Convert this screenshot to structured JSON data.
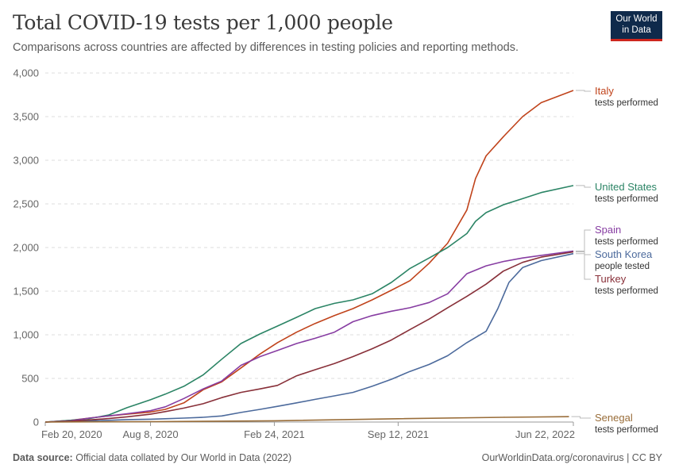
{
  "header": {
    "title": "Total COVID-19 tests per 1,000 people",
    "subtitle": "Comparisons across countries are affected by differences in testing policies and reporting methods."
  },
  "logo": {
    "line1": "Our World",
    "line2": "in Data",
    "bg_color": "#0f2a4b",
    "accent_color": "#ce261e"
  },
  "footer": {
    "source_label": "Data source:",
    "source_text": "Official data collated by Our World in Data (2022)",
    "right_text": "OurWorldinData.org/coronavirus | CC BY"
  },
  "chart_data": {
    "type": "line",
    "title": "Total COVID-19 tests per 1,000 people",
    "ylim": [
      0,
      4000
    ],
    "yticks": [
      0,
      500,
      1000,
      1500,
      2000,
      2500,
      3000,
      3500,
      4000
    ],
    "ytick_labels": [
      "0",
      "500",
      "1,000",
      "1,500",
      "2,000",
      "2,500",
      "3,000",
      "3,500",
      "4,000"
    ],
    "xticks": [
      "2020-02-20",
      "2020-08-08",
      "2021-02-24",
      "2021-09-12",
      "2022-06-22"
    ],
    "xtick_labels": [
      "Feb 20, 2020",
      "Aug 8, 2020",
      "Feb 24, 2021",
      "Sep 12, 2021",
      "Jun 22, 2022"
    ],
    "xlim": [
      "2020-02-20",
      "2022-06-22"
    ],
    "grid": true,
    "series": [
      {
        "name": "Italy",
        "sublabel": "tests performed",
        "color": "#c0431b",
        "points": [
          [
            "2020-02-20",
            0
          ],
          [
            "2020-04-01",
            20
          ],
          [
            "2020-05-01",
            45
          ],
          [
            "2020-06-01",
            70
          ],
          [
            "2020-07-01",
            90
          ],
          [
            "2020-08-08",
            115
          ],
          [
            "2020-09-01",
            145
          ],
          [
            "2020-10-01",
            220
          ],
          [
            "2020-11-01",
            370
          ],
          [
            "2020-12-01",
            460
          ],
          [
            "2021-01-01",
            620
          ],
          [
            "2021-02-01",
            780
          ],
          [
            "2021-03-01",
            910
          ],
          [
            "2021-04-01",
            1030
          ],
          [
            "2021-05-01",
            1130
          ],
          [
            "2021-06-01",
            1220
          ],
          [
            "2021-07-01",
            1300
          ],
          [
            "2021-08-01",
            1400
          ],
          [
            "2021-09-01",
            1510
          ],
          [
            "2021-10-01",
            1620
          ],
          [
            "2021-11-01",
            1820
          ],
          [
            "2021-12-01",
            2050
          ],
          [
            "2022-01-01",
            2430
          ],
          [
            "2022-01-15",
            2790
          ],
          [
            "2022-02-01",
            3050
          ],
          [
            "2022-03-01",
            3270
          ],
          [
            "2022-04-01",
            3500
          ],
          [
            "2022-05-01",
            3660
          ],
          [
            "2022-06-22",
            3800
          ]
        ]
      },
      {
        "name": "United States",
        "sublabel": "tests performed",
        "color": "#2b8465",
        "points": [
          [
            "2020-02-20",
            0
          ],
          [
            "2020-04-01",
            20
          ],
          [
            "2020-05-01",
            40
          ],
          [
            "2020-06-01",
            80
          ],
          [
            "2020-07-01",
            165
          ],
          [
            "2020-08-08",
            255
          ],
          [
            "2020-09-01",
            320
          ],
          [
            "2020-10-01",
            410
          ],
          [
            "2020-11-01",
            540
          ],
          [
            "2020-12-01",
            720
          ],
          [
            "2021-01-01",
            900
          ],
          [
            "2021-02-01",
            1010
          ],
          [
            "2021-03-01",
            1100
          ],
          [
            "2021-04-01",
            1200
          ],
          [
            "2021-05-01",
            1300
          ],
          [
            "2021-06-01",
            1360
          ],
          [
            "2021-07-01",
            1400
          ],
          [
            "2021-08-01",
            1470
          ],
          [
            "2021-09-01",
            1600
          ],
          [
            "2021-10-01",
            1760
          ],
          [
            "2021-11-01",
            1880
          ],
          [
            "2021-12-01",
            2000
          ],
          [
            "2022-01-01",
            2160
          ],
          [
            "2022-01-15",
            2300
          ],
          [
            "2022-02-01",
            2400
          ],
          [
            "2022-03-01",
            2490
          ],
          [
            "2022-04-01",
            2560
          ],
          [
            "2022-05-01",
            2630
          ],
          [
            "2022-06-22",
            2710
          ]
        ]
      },
      {
        "name": "Spain",
        "sublabel": "tests performed",
        "color": "#873da2",
        "points": [
          [
            "2020-02-20",
            0
          ],
          [
            "2020-04-01",
            15
          ],
          [
            "2020-05-01",
            45
          ],
          [
            "2020-06-01",
            70
          ],
          [
            "2020-07-01",
            95
          ],
          [
            "2020-08-08",
            130
          ],
          [
            "2020-09-01",
            175
          ],
          [
            "2020-10-01",
            270
          ],
          [
            "2020-11-01",
            380
          ],
          [
            "2020-12-01",
            470
          ],
          [
            "2021-01-01",
            650
          ],
          [
            "2021-02-01",
            750
          ],
          [
            "2021-03-01",
            820
          ],
          [
            "2021-04-01",
            900
          ],
          [
            "2021-05-01",
            960
          ],
          [
            "2021-06-01",
            1030
          ],
          [
            "2021-07-01",
            1150
          ],
          [
            "2021-08-01",
            1220
          ],
          [
            "2021-09-01",
            1270
          ],
          [
            "2021-10-01",
            1310
          ],
          [
            "2021-11-01",
            1370
          ],
          [
            "2021-12-01",
            1470
          ],
          [
            "2022-01-01",
            1700
          ],
          [
            "2022-02-01",
            1790
          ],
          [
            "2022-03-01",
            1840
          ],
          [
            "2022-04-01",
            1880
          ],
          [
            "2022-05-01",
            1910
          ],
          [
            "2022-06-22",
            1960
          ]
        ]
      },
      {
        "name": "South Korea",
        "sublabel": "people tested",
        "color": "#4c6a9c",
        "points": [
          [
            "2020-02-20",
            0
          ],
          [
            "2020-04-01",
            10
          ],
          [
            "2020-05-01",
            15
          ],
          [
            "2020-06-01",
            20
          ],
          [
            "2020-07-01",
            28
          ],
          [
            "2020-08-08",
            33
          ],
          [
            "2020-09-01",
            38
          ],
          [
            "2020-10-01",
            45
          ],
          [
            "2020-11-01",
            55
          ],
          [
            "2020-12-01",
            70
          ],
          [
            "2021-01-01",
            110
          ],
          [
            "2021-02-01",
            145
          ],
          [
            "2021-03-01",
            180
          ],
          [
            "2021-04-01",
            220
          ],
          [
            "2021-05-01",
            260
          ],
          [
            "2021-06-01",
            300
          ],
          [
            "2021-07-01",
            340
          ],
          [
            "2021-08-01",
            410
          ],
          [
            "2021-09-01",
            490
          ],
          [
            "2021-10-01",
            580
          ],
          [
            "2021-11-01",
            660
          ],
          [
            "2021-12-01",
            760
          ],
          [
            "2022-01-01",
            910
          ],
          [
            "2022-02-01",
            1040
          ],
          [
            "2022-02-20",
            1300
          ],
          [
            "2022-03-10",
            1600
          ],
          [
            "2022-04-01",
            1770
          ],
          [
            "2022-05-01",
            1850
          ],
          [
            "2022-06-22",
            1930
          ]
        ]
      },
      {
        "name": "Turkey",
        "sublabel": "tests performed",
        "color": "#883039",
        "points": [
          [
            "2020-02-20",
            0
          ],
          [
            "2020-04-01",
            10
          ],
          [
            "2020-05-01",
            25
          ],
          [
            "2020-06-01",
            40
          ],
          [
            "2020-07-01",
            60
          ],
          [
            "2020-08-08",
            90
          ],
          [
            "2020-09-01",
            120
          ],
          [
            "2020-10-01",
            160
          ],
          [
            "2020-11-01",
            210
          ],
          [
            "2020-12-01",
            280
          ],
          [
            "2021-01-01",
            340
          ],
          [
            "2021-02-01",
            380
          ],
          [
            "2021-03-01",
            420
          ],
          [
            "2021-04-01",
            530
          ],
          [
            "2021-05-01",
            600
          ],
          [
            "2021-06-01",
            670
          ],
          [
            "2021-07-01",
            750
          ],
          [
            "2021-08-01",
            840
          ],
          [
            "2021-09-01",
            940
          ],
          [
            "2021-10-01",
            1060
          ],
          [
            "2021-11-01",
            1180
          ],
          [
            "2021-12-01",
            1310
          ],
          [
            "2022-01-01",
            1440
          ],
          [
            "2022-02-01",
            1580
          ],
          [
            "2022-03-01",
            1730
          ],
          [
            "2022-04-01",
            1830
          ],
          [
            "2022-05-01",
            1890
          ],
          [
            "2022-06-22",
            1950
          ]
        ]
      },
      {
        "name": "Senegal",
        "sublabel": "tests performed",
        "color": "#996d39",
        "points": [
          [
            "2020-02-20",
            0
          ],
          [
            "2020-08-08",
            5
          ],
          [
            "2021-02-24",
            15
          ],
          [
            "2021-09-12",
            38
          ],
          [
            "2022-03-01",
            55
          ],
          [
            "2022-06-15",
            62
          ]
        ]
      }
    ]
  }
}
